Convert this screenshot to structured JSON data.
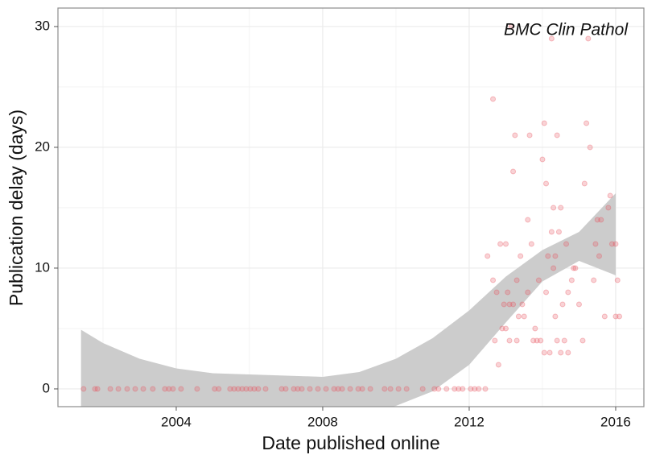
{
  "chart_data": {
    "type": "scatter",
    "annotation": "BMC Clin Pathol",
    "x_label": "Date published online",
    "y_label": "Publication delay (days)",
    "xlim": [
      2000.77,
      2016.77
    ],
    "ylim": [
      -1.47,
      31.53
    ],
    "xticks": [
      2004,
      2008,
      2012,
      2016
    ],
    "yticks": [
      0,
      10,
      20,
      30
    ],
    "x_minor_grid": [
      2002,
      2006,
      2010,
      2014
    ],
    "y_minor_grid": [
      5,
      15,
      25
    ],
    "grid": true,
    "color": "#e8505b",
    "x": [
      2001.47,
      2001.78,
      2001.85,
      2002.2,
      2002.42,
      2002.66,
      2002.88,
      2003.1,
      2003.36,
      2003.69,
      2003.8,
      2003.91,
      2004.13,
      2004.57,
      2005.05,
      2005.16,
      2005.47,
      2005.58,
      2005.69,
      2005.8,
      2005.91,
      2006.02,
      2006.13,
      2006.24,
      2006.44,
      2006.88,
      2006.99,
      2007.21,
      2007.32,
      2007.43,
      2007.65,
      2007.87,
      2008.09,
      2008.31,
      2008.42,
      2008.53,
      2008.75,
      2008.97,
      2009.08,
      2009.3,
      2009.69,
      2009.85,
      2010.07,
      2010.29,
      2010.73,
      2011.05,
      2011.16,
      2011.38,
      2011.6,
      2011.71,
      2011.82,
      2012.04,
      2012.15,
      2012.26,
      2012.44,
      2012.5,
      2012.65,
      2012.65,
      2012.7,
      2012.75,
      2012.8,
      2012.85,
      2012.9,
      2012.95,
      2013.0,
      2013.0,
      2013.05,
      2013.1,
      2013.1,
      2013.15,
      2013.2,
      2013.2,
      2013.25,
      2013.3,
      2013.3,
      2013.35,
      2013.4,
      2013.45,
      2013.5,
      2013.6,
      2013.6,
      2013.65,
      2013.7,
      2013.75,
      2013.8,
      2013.85,
      2013.9,
      2013.95,
      2014.0,
      2014.05,
      2014.05,
      2014.1,
      2014.1,
      2014.15,
      2014.2,
      2014.25,
      2014.25,
      2014.3,
      2014.3,
      2014.35,
      2014.35,
      2014.4,
      2014.4,
      2014.45,
      2014.5,
      2014.5,
      2014.55,
      2014.6,
      2014.65,
      2014.7,
      2014.7,
      2014.8,
      2014.85,
      2014.9,
      2015.0,
      2015.1,
      2015.15,
      2015.2,
      2015.25,
      2015.3,
      2015.4,
      2015.45,
      2015.5,
      2015.55,
      2015.6,
      2015.7,
      2015.8,
      2015.85,
      2015.9,
      2016.0,
      2016.0,
      2016.05,
      2016.1
    ],
    "values": [
      0,
      0,
      0,
      0,
      0,
      0,
      0,
      0,
      0,
      0,
      0,
      0,
      0,
      0,
      0,
      0,
      0,
      0,
      0,
      0,
      0,
      0,
      0,
      0,
      0,
      0,
      0,
      0,
      0,
      0,
      0,
      0,
      0,
      0,
      0,
      0,
      0,
      0,
      0,
      0,
      0,
      0,
      0,
      0,
      0,
      0,
      0,
      0,
      0,
      0,
      0,
      0,
      0,
      0,
      0,
      11,
      24,
      9,
      4,
      8,
      2,
      12,
      5,
      7,
      5,
      12,
      8,
      7,
      4,
      30,
      18,
      7,
      21,
      4,
      9,
      6,
      11,
      7,
      6,
      8,
      14,
      21,
      12,
      4,
      5,
      4,
      9,
      4,
      19,
      22,
      3,
      17,
      8,
      11,
      3,
      29,
      13,
      15,
      10,
      11,
      6,
      21,
      4,
      13,
      15,
      3,
      7,
      4,
      12,
      8,
      3,
      9,
      10,
      10,
      7,
      4,
      17,
      22,
      29,
      20,
      9,
      12,
      14,
      11,
      14,
      6,
      15,
      16,
      12,
      12,
      6,
      9,
      6
    ],
    "band": {
      "color": "#cccccc",
      "x": [
        2001.4,
        2002,
        2003,
        2004,
        2005,
        2006,
        2007,
        2008,
        2009,
        2010,
        2011,
        2012,
        2013,
        2014,
        2015,
        2016
      ],
      "upper": [
        4.9,
        3.8,
        2.5,
        1.7,
        1.3,
        1.2,
        1.1,
        1.0,
        1.4,
        2.5,
        4.2,
        6.5,
        9.3,
        11.5,
        13.0,
        16.2
      ],
      "lower": [
        -5.5,
        -4.5,
        -3.2,
        -2.5,
        -2.1,
        -2.0,
        -2.0,
        -2.1,
        -2.0,
        -1.4,
        -0.2,
        2.0,
        5.5,
        8.9,
        10.6,
        9.4
      ]
    }
  }
}
